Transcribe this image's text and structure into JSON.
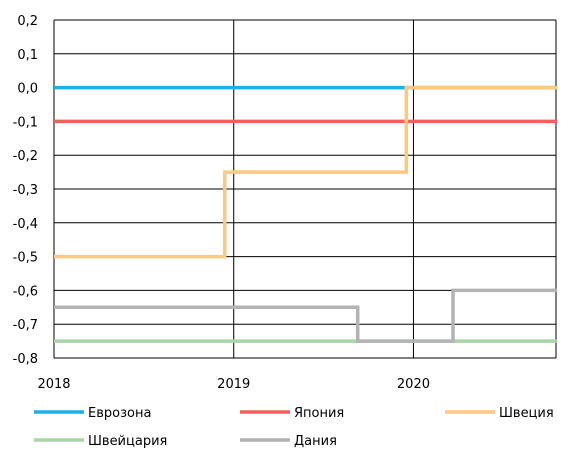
{
  "chart_data": {
    "type": "line",
    "title": "",
    "xlabel": "",
    "ylabel": "",
    "xlim": [
      2018,
      2020.8
    ],
    "ylim": [
      -0.8,
      0.2
    ],
    "x_ticks": [
      "2018",
      "2019",
      "2020"
    ],
    "y_ticks": [
      "0,2",
      "0,1",
      "0,0",
      "-0,1",
      "-0,2",
      "-0,3",
      "-0,4",
      "-0,5",
      "-0,6",
      "-0,7",
      "-0,8"
    ],
    "grid": "on",
    "legend_position": "bottom",
    "series": [
      {
        "name": "Еврозона",
        "color": "#1ab0e8",
        "points": [
          [
            2018.0,
            0.0
          ],
          [
            2020.8,
            0.0
          ]
        ]
      },
      {
        "name": "Япония",
        "color": "#f0605c",
        "points": [
          [
            2018.0,
            -0.1
          ],
          [
            2020.8,
            -0.1
          ]
        ]
      },
      {
        "name": "Швеция",
        "color": "#fbc97f",
        "points": [
          [
            2018.0,
            -0.5
          ],
          [
            2018.95,
            -0.5
          ],
          [
            2018.95,
            -0.25
          ],
          [
            2019.96,
            -0.25
          ],
          [
            2019.96,
            0.0
          ],
          [
            2020.8,
            0.0
          ]
        ]
      },
      {
        "name": "Швейцария",
        "color": "#a8d5a8",
        "points": [
          [
            2018.0,
            -0.75
          ],
          [
            2020.8,
            -0.75
          ]
        ]
      },
      {
        "name": "Дания",
        "color": "#b3b3b3",
        "points": [
          [
            2018.0,
            -0.65
          ],
          [
            2019.69,
            -0.65
          ],
          [
            2019.69,
            -0.75
          ],
          [
            2020.22,
            -0.75
          ],
          [
            2020.22,
            -0.6
          ],
          [
            2020.8,
            -0.6
          ]
        ]
      }
    ]
  }
}
